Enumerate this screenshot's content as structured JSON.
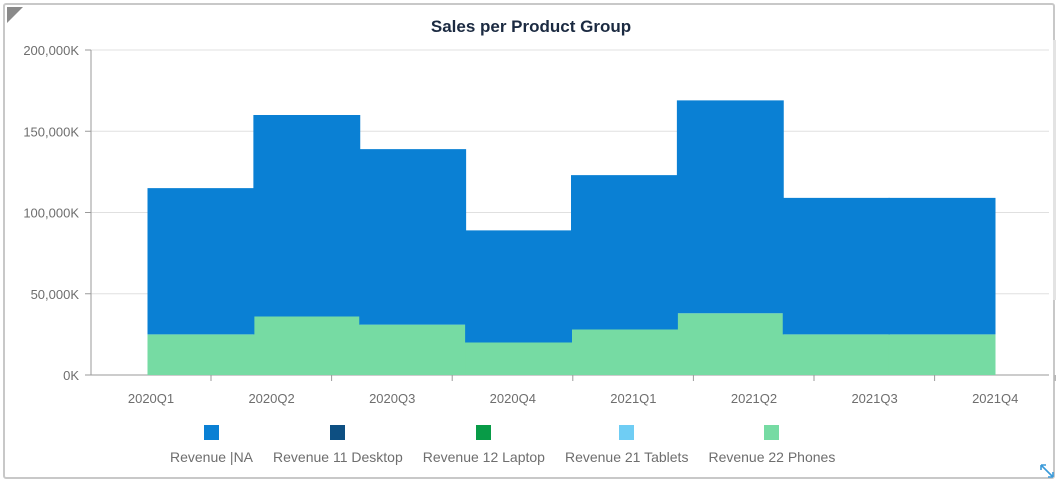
{
  "chart_data": {
    "type": "bar",
    "title": "Sales per Product Group",
    "categories": [
      "2020Q1",
      "2020Q2",
      "2020Q3",
      "2020Q4",
      "2021Q1",
      "2021Q2",
      "2021Q3",
      "2021Q4"
    ],
    "y_ticks": [
      "0K",
      "50,000K",
      "100,000K",
      "150,000K",
      "200,000K"
    ],
    "ylim": [
      0,
      200000
    ],
    "stacked": true,
    "grid": true,
    "legend_position": "bottom",
    "series": [
      {
        "name": "Revenue 22 Phones",
        "color": "#76dba3",
        "values": [
          25000,
          36000,
          31000,
          20000,
          28000,
          38000,
          25000,
          25000
        ]
      },
      {
        "name": "Revenue |NA",
        "color": "#0a80d4",
        "values": [
          90000,
          124000,
          108000,
          69000,
          95000,
          131000,
          84000,
          84000
        ]
      }
    ],
    "legend": [
      {
        "name": "Revenue |NA",
        "color": "#0a80d4"
      },
      {
        "name": "Revenue 11 Desktop",
        "color": "#0d4f82"
      },
      {
        "name": "Revenue 12 Laptop",
        "color": "#089b47"
      },
      {
        "name": "Revenue 21 Tablets",
        "color": "#6fcdf4"
      },
      {
        "name": "Revenue 22 Phones",
        "color": "#76dba3"
      }
    ]
  },
  "icons": {
    "expand": "expand-arrow-icon"
  }
}
